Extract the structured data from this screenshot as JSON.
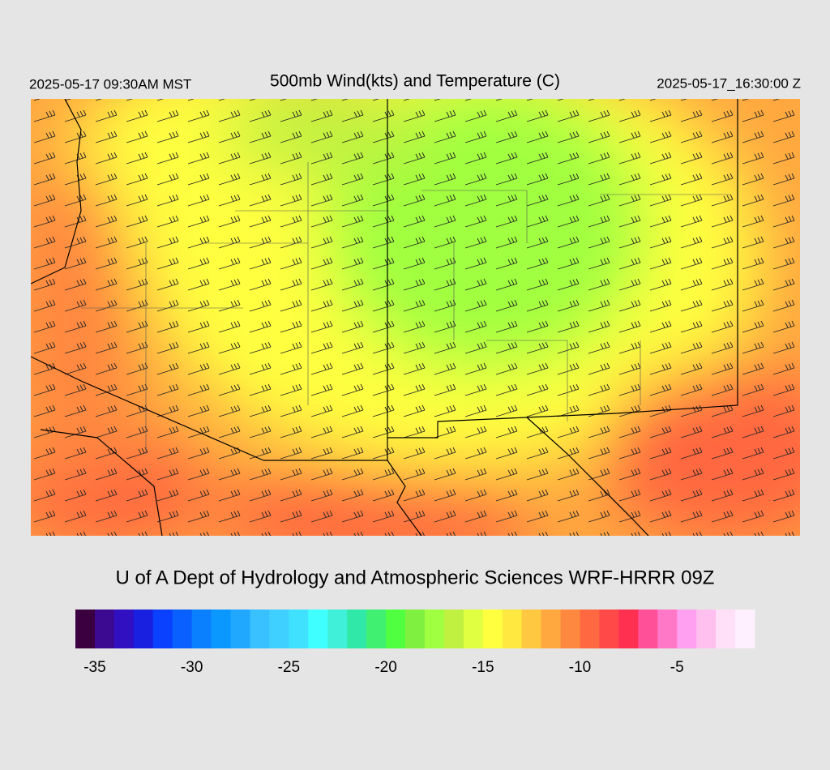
{
  "header": {
    "left": "2025-05-17 09:30AM MST",
    "title": "500mb Wind(kts) and Temperature (C)",
    "right": "2025-05-17_16:30:00 Z"
  },
  "credit": "U of A Dept of Hydrology and Atmospheric Sciences WRF-HRRR 09Z",
  "colorbar": {
    "colors": [
      "#3a0040",
      "#3c0a90",
      "#3010c0",
      "#1a20e0",
      "#0a40ff",
      "#0a60ff",
      "#0a80ff",
      "#0a98ff",
      "#20a8ff",
      "#38c0ff",
      "#40d0ff",
      "#40e0ff",
      "#40ffff",
      "#40f0d8",
      "#30e8a8",
      "#40f070",
      "#50ff40",
      "#80f040",
      "#a0ff40",
      "#c0f040",
      "#e0ff40",
      "#ffff40",
      "#ffe840",
      "#ffc840",
      "#ffa840",
      "#ff8840",
      "#ff6840",
      "#ff4848",
      "#ff3050",
      "#ff5098",
      "#ff78c8",
      "#ffa0f0",
      "#ffc0f0",
      "#ffe0f8",
      "#fff0ff"
    ],
    "lim": [
      -36,
      -1
    ],
    "ticks": [
      -35,
      -30,
      -25,
      -20,
      -15,
      -10,
      -5
    ]
  }
}
